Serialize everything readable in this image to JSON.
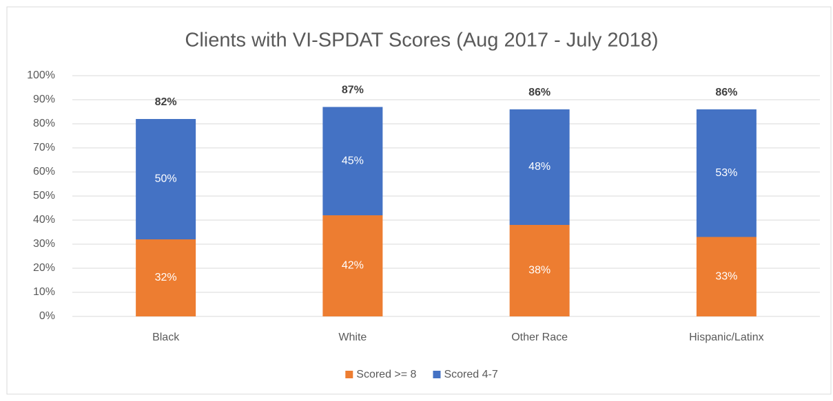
{
  "chart_data": {
    "type": "stacked_bar",
    "title": "Clients with VI-SPDAT Scores (Aug 2017 - July 2018)",
    "categories": [
      "Black",
      "White",
      "Other Race",
      "Hispanic/Latinx"
    ],
    "series": [
      {
        "name": "Scored >= 8",
        "color": "#ed7d31",
        "values": [
          32,
          42,
          38,
          33
        ],
        "value_labels": [
          "32%",
          "42%",
          "38%",
          "33%"
        ]
      },
      {
        "name": "Scored 4-7",
        "color": "#4472c4",
        "values": [
          50,
          45,
          48,
          53
        ],
        "value_labels": [
          "50%",
          "45%",
          "48%",
          "53%"
        ]
      }
    ],
    "totals": [
      82,
      87,
      86,
      86
    ],
    "total_labels": [
      "82%",
      "87%",
      "86%",
      "86%"
    ],
    "ylim": [
      0,
      100
    ],
    "yticks": [
      {
        "value": 0,
        "label": "0%"
      },
      {
        "value": 10,
        "label": "10%"
      },
      {
        "value": 20,
        "label": "20%"
      },
      {
        "value": 30,
        "label": "30%"
      },
      {
        "value": 40,
        "label": "40%"
      },
      {
        "value": 50,
        "label": "50%"
      },
      {
        "value": 60,
        "label": "60%"
      },
      {
        "value": 70,
        "label": "70%"
      },
      {
        "value": 80,
        "label": "80%"
      },
      {
        "value": 90,
        "label": "90%"
      },
      {
        "value": 100,
        "label": "100%"
      }
    ],
    "grid": true,
    "legend": "bottom"
  }
}
